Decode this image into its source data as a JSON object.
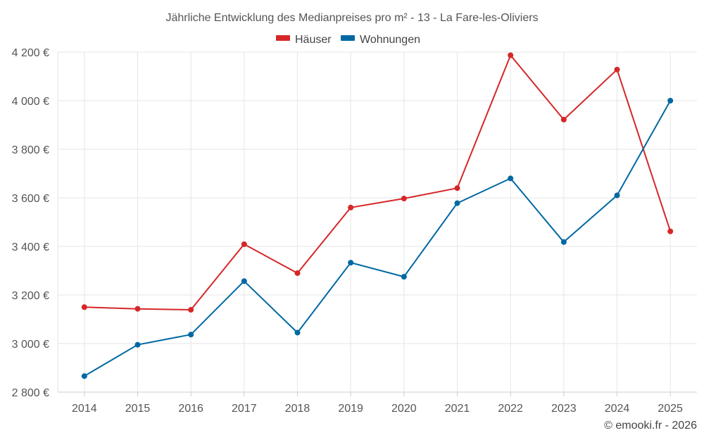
{
  "chart_data": {
    "type": "line",
    "title": "Jährliche Entwicklung des Medianpreises pro m² - 13 - La Fare-les-Oliviers",
    "categories": [
      "2014",
      "2015",
      "2016",
      "2017",
      "2018",
      "2019",
      "2020",
      "2021",
      "2022",
      "2023",
      "2024",
      "2025"
    ],
    "series": [
      {
        "name": "Häuser",
        "color": "#d62728",
        "values": [
          3150,
          3143,
          3139,
          3409,
          3290,
          3560,
          3597,
          3640,
          4187,
          3922,
          4128,
          3462
        ]
      },
      {
        "name": "Wohnungen",
        "color": "#0068a3",
        "values": [
          2866,
          2995,
          3037,
          3257,
          3045,
          3333,
          3275,
          3578,
          3680,
          3418,
          3610,
          4000
        ]
      }
    ],
    "ylim": [
      2800,
      4200
    ],
    "yticks": [
      2800,
      3000,
      3200,
      3400,
      3600,
      3800,
      4000,
      4200
    ],
    "ytick_labels": [
      "2 800 €",
      "3 000 €",
      "3 200 €",
      "3 400 €",
      "3 600 €",
      "3 800 €",
      "4 000 €",
      "4 200 €"
    ],
    "legend": "top-center",
    "grid": true,
    "xlabel": "",
    "ylabel": ""
  },
  "credit": "© emooki.fr - 2026"
}
